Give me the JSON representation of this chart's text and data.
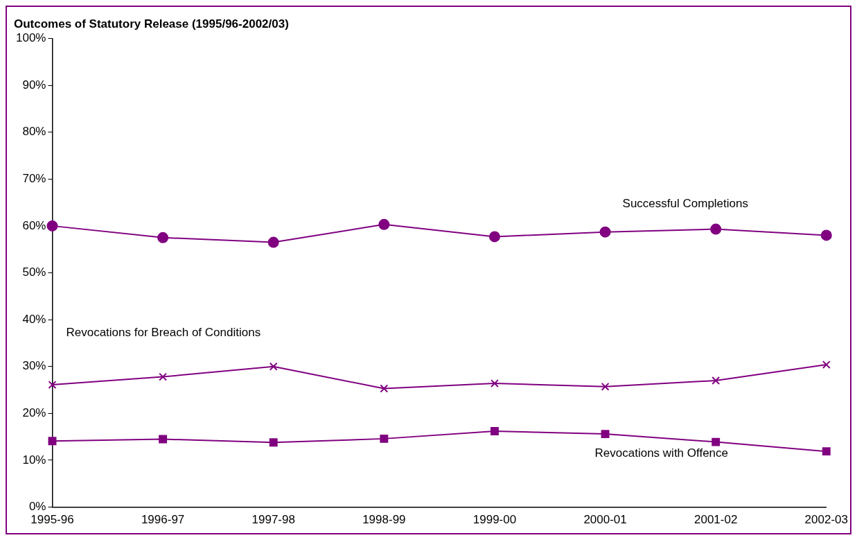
{
  "chart_data": {
    "type": "line",
    "title": "Outcomes of Statutory Release (1995/96-2002/03)",
    "categories": [
      "1995-96",
      "1996-97",
      "1997-98",
      "1998-99",
      "1999-00",
      "2000-01",
      "2001-02",
      "2002-03"
    ],
    "series": [
      {
        "name": "Successful Completions",
        "color": "#800080",
        "marker": "circle",
        "values": [
          60.0,
          57.5,
          56.5,
          60.3,
          57.7,
          58.7,
          59.3,
          58.0
        ]
      },
      {
        "name": "Revocations for Breach of Conditions",
        "color": "#800080",
        "marker": "cross",
        "values": [
          26.1,
          27.8,
          30.0,
          25.3,
          26.4,
          25.7,
          27.0,
          30.4
        ]
      },
      {
        "name": "Revocations with Offence",
        "color": "#800080",
        "marker": "square",
        "values": [
          14.1,
          14.5,
          13.8,
          14.6,
          16.2,
          15.6,
          13.9,
          11.9
        ]
      }
    ],
    "ylim": [
      0,
      100
    ],
    "yticks": [
      {
        "value": 0,
        "label": "0%"
      },
      {
        "value": 10,
        "label": "10%"
      },
      {
        "value": 20,
        "label": "20%"
      },
      {
        "value": 30,
        "label": "30%"
      },
      {
        "value": 40,
        "label": "40%"
      },
      {
        "value": 50,
        "label": "50%"
      },
      {
        "value": 60,
        "label": "60%"
      },
      {
        "value": 70,
        "label": "70%"
      },
      {
        "value": 80,
        "label": "80%"
      },
      {
        "value": 90,
        "label": "90%"
      },
      {
        "value": 100,
        "label": "100%"
      }
    ],
    "grid": false,
    "legend": false,
    "line_style": "solid"
  }
}
